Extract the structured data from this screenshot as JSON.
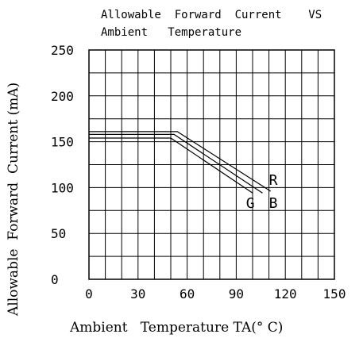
{
  "chart_data": {
    "type": "line",
    "title_line1": "Allowable  Forward  Current    VS",
    "title_line2": "Ambient   Temperature",
    "xlabel": "Ambient   Temperature TA(° C)",
    "ylabel": "Allowable  Forward  Current (mA)",
    "xlim": [
      0,
      150
    ],
    "ylim": [
      0,
      250
    ],
    "x_ticks": [
      0,
      30,
      60,
      90,
      120,
      150
    ],
    "y_ticks": [
      0,
      50,
      100,
      150,
      200,
      250
    ],
    "x_grid": [
      0,
      10,
      20,
      30,
      40,
      50,
      60,
      70,
      80,
      90,
      100,
      110,
      120,
      130,
      140,
      150
    ],
    "y_grid": [
      0,
      25,
      50,
      75,
      100,
      125,
      150,
      175,
      200,
      225,
      250
    ],
    "grid": true,
    "series": [
      {
        "name": "R",
        "label_at": [
          110,
          103
        ],
        "color": "#000000",
        "points": [
          [
            0,
            161
          ],
          [
            54,
            161
          ],
          [
            111,
            96
          ]
        ]
      },
      {
        "name": "B",
        "label_at": [
          110,
          78
        ],
        "color": "#000000",
        "points": [
          [
            0,
            158
          ],
          [
            52,
            158
          ],
          [
            106,
            94
          ]
        ]
      },
      {
        "name": "G",
        "label_at": [
          96,
          78
        ],
        "color": "#000000",
        "points": [
          [
            0,
            154
          ],
          [
            50,
            154
          ],
          [
            100,
            94
          ]
        ]
      }
    ]
  }
}
